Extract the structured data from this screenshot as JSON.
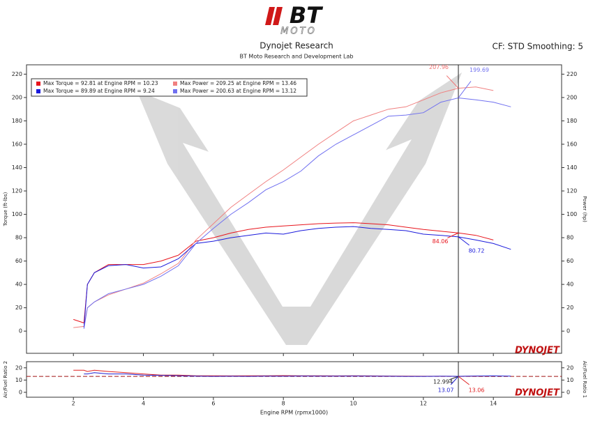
{
  "header": {
    "logo_main": "BT",
    "logo_sub": "MOTO",
    "title": "Dynojet Research",
    "subtitle": "BT Moto Research and Development Lab",
    "settings": "CF: STD Smoothing: 5",
    "brand": "DYNOJET"
  },
  "chart_data": [
    {
      "type": "line",
      "y_label": "Torque (ft-lbs)",
      "y2_label": "Power (hp)",
      "x": [
        2.0,
        2.3,
        2.4,
        2.6,
        3.0,
        3.5,
        4.0,
        4.5,
        5.0,
        5.5,
        6.0,
        6.5,
        7.0,
        7.5,
        8.0,
        8.5,
        9.0,
        9.5,
        10.0,
        10.5,
        11.0,
        11.5,
        12.0,
        12.5,
        13.0,
        13.5,
        14.0,
        14.5
      ],
      "xlim": [
        0.66,
        15.95
      ],
      "xticks": [
        2,
        4,
        6,
        8,
        10,
        12,
        14
      ],
      "ylim": [
        -19,
        228
      ],
      "yticks": [
        0,
        20,
        40,
        60,
        80,
        100,
        120,
        140,
        160,
        180,
        200,
        220
      ],
      "y2lim": [
        -19,
        228
      ],
      "y2ticks": [
        0,
        20,
        40,
        60,
        80,
        100,
        120,
        140,
        160,
        180,
        200,
        220
      ],
      "cursor_x": 13,
      "series": [
        {
          "name": "Max Torque = 92.81 at Engine RPM = 10.23",
          "color": "#e8141c",
          "values": [
            10,
            7,
            40,
            50,
            57,
            57,
            57,
            60,
            65,
            77,
            80,
            84,
            87,
            89,
            90,
            91,
            92,
            92.5,
            92.8,
            92,
            91,
            89,
            87,
            85.5,
            84.06,
            82,
            78,
            null
          ]
        },
        {
          "name": "Max Power = 209.25 at Engine RPM = 13.46",
          "color": "#f08080",
          "axis": "y2",
          "values": [
            3,
            4,
            20,
            25,
            31,
            36,
            41,
            49,
            58,
            78,
            92,
            106,
            117,
            128,
            138,
            149,
            160,
            170,
            180,
            185,
            190,
            192,
            198,
            204,
            207.96,
            209,
            206,
            null
          ]
        },
        {
          "name": "Max Torque = 89.89 at Engine RPM = 9.24",
          "color": "#1a1adc",
          "values": [
            null,
            3,
            40,
            50,
            56,
            57,
            54,
            55,
            62,
            75,
            77,
            80,
            82,
            84,
            83,
            86,
            88,
            89,
            89.5,
            88,
            87,
            86,
            83,
            82,
            80.72,
            78,
            75,
            70
          ]
        },
        {
          "name": "Max Power = 200.63 at Engine RPM = 13.12",
          "color": "#7070f0",
          "axis": "y2",
          "values": [
            null,
            2,
            20,
            25,
            32,
            36,
            40,
            47,
            56,
            75,
            88,
            100,
            110,
            121,
            128,
            137,
            150,
            160,
            168,
            176,
            184,
            185,
            187,
            196,
            199.69,
            198,
            196,
            192
          ]
        }
      ],
      "annotations": [
        {
          "x": 13,
          "value": 207.96,
          "color": "#f07070",
          "axis": "y2"
        },
        {
          "x": 13,
          "value": 199.69,
          "color": "#7070f0",
          "axis": "y2"
        },
        {
          "x": 13,
          "value": 84.06,
          "color": "#e8141c"
        },
        {
          "x": 13,
          "value": 80.72,
          "color": "#1a1adc"
        }
      ]
    },
    {
      "type": "line",
      "x_label": "Engine RPM (rpmx1000)",
      "y_label": "Air/Fuel Ratio 2",
      "y2_label": "Air/Fuel Ratio 1",
      "x": [
        2.0,
        2.3,
        2.4,
        2.6,
        3.0,
        3.5,
        4.0,
        4.5,
        5.0,
        5.5,
        6.0,
        6.5,
        7.0,
        7.5,
        8.0,
        8.5,
        9.0,
        9.5,
        10.0,
        10.5,
        11.0,
        11.5,
        12.0,
        12.5,
        13.0,
        13.5,
        14.0,
        14.5
      ],
      "xlim": [
        0.66,
        15.95
      ],
      "xticks": [
        2,
        4,
        6,
        8,
        10,
        12,
        14
      ],
      "ylim": [
        -4,
        25
      ],
      "yticks": [
        0,
        10,
        20
      ],
      "y2lim": [
        -4,
        25
      ],
      "y2ticks": [
        0,
        10,
        20
      ],
      "reference_line": 13,
      "reference_color": "#a01010",
      "cursor_x": 13,
      "series": [
        {
          "color": "#e02020",
          "values": [
            18,
            18,
            17,
            18,
            17,
            16,
            15,
            14,
            14,
            13.5,
            13.5,
            13.4,
            13.5,
            13.5,
            13.6,
            13.5,
            13.5,
            13.4,
            13.5,
            13.4,
            13.3,
            13.2,
            13.1,
            13.1,
            13.06,
            13.2,
            13.3,
            null
          ]
        },
        {
          "color": "#2020d0",
          "values": [
            null,
            15,
            15,
            16,
            15,
            15,
            14,
            13.8,
            13.5,
            13.2,
            13,
            13.1,
            13,
            13.2,
            13.1,
            13.3,
            13.2,
            13.2,
            13.3,
            13.2,
            13.1,
            13,
            13,
            13.1,
            13.07,
            13.3,
            13.4,
            13.2
          ]
        }
      ],
      "annotations": [
        {
          "x": 13,
          "value": 12.994,
          "color": "#222"
        },
        {
          "x": 13,
          "value": 13.07,
          "color": "#2020d0"
        },
        {
          "x": 13,
          "value": 13.06,
          "color": "#e02020"
        }
      ]
    }
  ]
}
